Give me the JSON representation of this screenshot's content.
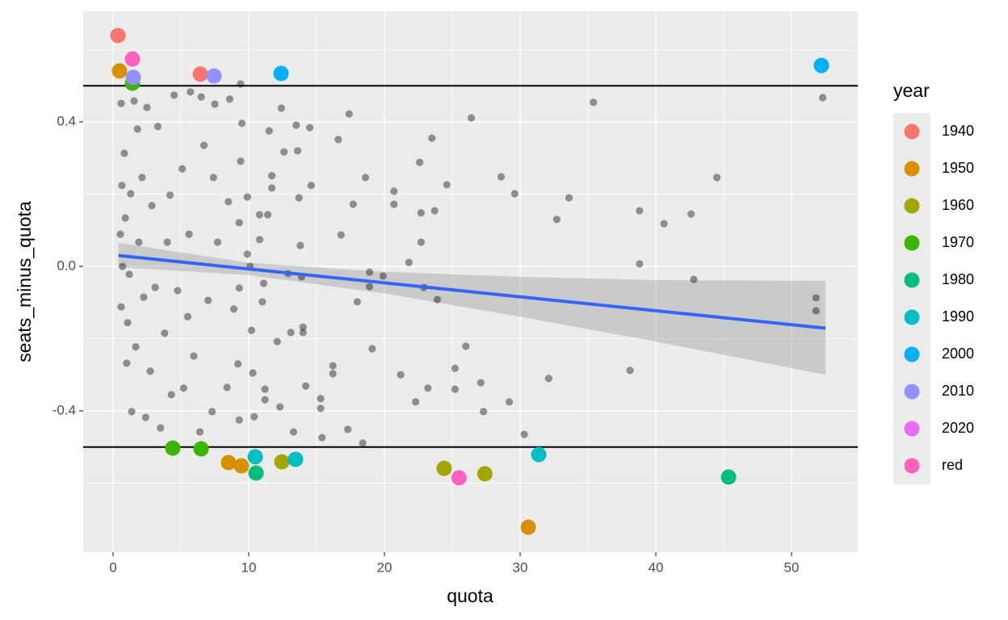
{
  "chart_data": {
    "type": "scatter",
    "xlabel": "quota",
    "ylabel": "seats_minus_quota",
    "xlim": [
      -2.2,
      54.88
    ],
    "ylim": [
      -0.791,
      0.706
    ],
    "xticks": [
      0,
      10,
      20,
      30,
      40,
      50
    ],
    "yticks": [
      -0.4,
      {
        "value": 0,
        "label": "0.0"
      },
      0.4
    ],
    "xminor": [
      5,
      15,
      25,
      35,
      45
    ],
    "yminor": [
      -0.6,
      -0.2,
      0.2,
      0.6
    ],
    "grid": true,
    "hlines": [
      0.5,
      -0.5
    ],
    "legend_title": "year",
    "legend_position": "right",
    "fit": {
      "color": "#3366FF",
      "x": [
        0.4,
        52.5
      ],
      "values": [
        0.03,
        -0.171
      ]
    },
    "band": {
      "color": "#999999",
      "x": [
        0.4,
        10,
        20,
        30,
        40,
        52.5
      ],
      "upper": [
        0.065,
        0.01,
        -0.015,
        -0.029,
        -0.038,
        -0.04
      ],
      "lower": [
        -0.002,
        -0.024,
        -0.075,
        -0.139,
        -0.208,
        -0.3
      ]
    },
    "series": [
      {
        "color": "#000000",
        "x": [
          51.8,
          51.8,
          52.3,
          44.5,
          42.6,
          42.8,
          40.6,
          38.8,
          38.8,
          38.1,
          35.4,
          33.6,
          32.7,
          32.1,
          30.3,
          29.6,
          29.2,
          28.6,
          27.3,
          27.1,
          26.4,
          26.0,
          25.2,
          25.2,
          24.6,
          23.9,
          23.7,
          23.5,
          23.2,
          22.9,
          22.7,
          22.7,
          22.6,
          22.3,
          21.8,
          21.2,
          20.7,
          20.7,
          19.9,
          19.1,
          18.9,
          18.9,
          18.6,
          18.4,
          18.0,
          17.7,
          17.4,
          17.3,
          16.8,
          16.6,
          16.2,
          16.2,
          15.4,
          15.3,
          15.3,
          14.6,
          14.5,
          14.2,
          14.0,
          14.0,
          13.9,
          13.8,
          13.7,
          13.6,
          13.5,
          13.3,
          13.1,
          12.9,
          12.6,
          12.4,
          12.3,
          12.1,
          11.7,
          11.7,
          11.5,
          11.4,
          11.2,
          11.2,
          11.1,
          11.0,
          10.8,
          10.8,
          10.4,
          10.3,
          10.2,
          10.1,
          9.9,
          9.9,
          9.4,
          9.5,
          9.4,
          9.3,
          9.3,
          9.2,
          9.3,
          8.9,
          8.6,
          8.5,
          8.4,
          7.7,
          7.5,
          7.4,
          7.3,
          7.0,
          6.7,
          6.5,
          6.4,
          5.95,
          5.7,
          5.6,
          5.5,
          5.2,
          5.1,
          4.76,
          4.5,
          4.3,
          4.2,
          4.0,
          3.8,
          3.5,
          3.3,
          3.1,
          2.86,
          2.74,
          2.5,
          2.4,
          2.26,
          2.14,
          1.9,
          1.8,
          1.67,
          1.55,
          1.37,
          1.3,
          1.2,
          1.07,
          1.0,
          0.9,
          0.83,
          0.7,
          0.65,
          0.6,
          0.6,
          0.54
        ],
        "values": [
          -0.087,
          -0.123,
          0.467,
          0.246,
          0.145,
          -0.036,
          0.118,
          0.154,
          0.007,
          -0.288,
          0.454,
          0.19,
          0.13,
          -0.31,
          -0.465,
          0.201,
          -0.375,
          0.248,
          -0.402,
          -0.322,
          0.411,
          -0.221,
          -0.34,
          -0.282,
          0.226,
          -0.092,
          0.154,
          0.355,
          -0.337,
          -0.058,
          0.067,
          0.148,
          0.288,
          -0.375,
          0.011,
          -0.3,
          0.172,
          0.208,
          -0.027,
          -0.228,
          -0.056,
          -0.016,
          0.246,
          -0.489,
          -0.098,
          0.172,
          0.422,
          -0.451,
          0.087,
          0.351,
          -0.297,
          -0.275,
          -0.474,
          -0.393,
          -0.366,
          0.224,
          0.384,
          -0.331,
          -0.168,
          -0.183,
          -0.029,
          0.058,
          0.19,
          0.32,
          0.391,
          -0.458,
          -0.183,
          -0.02,
          0.317,
          0.438,
          -0.389,
          -0.208,
          0.251,
          0.217,
          0.375,
          0.143,
          -0.34,
          -0.369,
          -0.047,
          -0.098,
          0.074,
          0.143,
          -0.416,
          -0.295,
          -0.177,
          0.0,
          0.034,
          0.192,
          0.505,
          0.396,
          0.291,
          0.121,
          -0.06,
          -0.27,
          -0.425,
          -0.118,
          0.463,
          0.179,
          -0.335,
          0.067,
          0.449,
          0.246,
          -0.402,
          -0.094,
          0.335,
          0.469,
          -0.458,
          -0.248,
          0.483,
          0.089,
          -0.139,
          -0.337,
          0.27,
          -0.067,
          0.474,
          -0.355,
          0.197,
          0.067,
          -0.185,
          -0.447,
          0.387,
          -0.058,
          0.168,
          -0.29,
          0.44,
          -0.418,
          -0.085,
          0.246,
          0.067,
          0.38,
          -0.223,
          0.458,
          -0.402,
          0.201,
          -0.022,
          -0.156,
          -0.268,
          0.134,
          0.313,
          0.0,
          0.224,
          0.451,
          -0.112,
          0.089
        ]
      },
      {
        "name": "1940",
        "color": "#F8766D",
        "x": [
          0.36,
          6.43
        ],
        "values": [
          0.639,
          0.532
        ]
      },
      {
        "name": "1950",
        "color": "#D89000",
        "x": [
          0.48,
          8.51,
          9.46,
          30.6
        ],
        "values": [
          0.541,
          -0.543,
          -0.552,
          -0.722
        ]
      },
      {
        "name": "1960",
        "color": "#A3A500",
        "x": [
          12.44,
          24.4,
          27.4
        ],
        "values": [
          -0.541,
          -0.559,
          -0.574
        ]
      },
      {
        "name": "1970",
        "color": "#39B600",
        "x": [
          1.43,
          4.4,
          6.49
        ],
        "values": [
          0.507,
          -0.503,
          -0.505
        ]
      },
      {
        "name": "1980",
        "color": "#00BF7D",
        "x": [
          10.54,
          45.36
        ],
        "values": [
          -0.572,
          -0.583
        ]
      },
      {
        "name": "1990",
        "color": "#00BFC4",
        "x": [
          10.48,
          13.45,
          31.37
        ],
        "values": [
          -0.527,
          -0.534,
          -0.521
        ]
      },
      {
        "name": "2000",
        "color": "#00B0F6",
        "x": [
          12.38,
          52.2
        ],
        "values": [
          0.534,
          0.556
        ]
      },
      {
        "name": "2010",
        "color": "#9590FF",
        "x": [
          7.44,
          1.49
        ],
        "values": [
          0.527,
          0.523
        ]
      },
      {
        "name": "2020",
        "color": "#E76BF3",
        "x": [],
        "values": []
      },
      {
        "name": "red",
        "color": "#FF62BC",
        "x": [
          1.43,
          25.5
        ],
        "values": [
          0.574,
          -0.585
        ]
      }
    ]
  }
}
